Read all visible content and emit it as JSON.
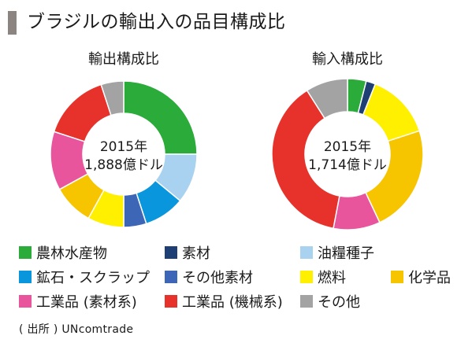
{
  "page": {
    "title": "ブラジルの輸出入の品目構成比",
    "source": "( 出所 ) UNcomtrade"
  },
  "categories": [
    {
      "key": "agri",
      "label": "農林水産物",
      "color": "#2aab3a"
    },
    {
      "key": "raw",
      "label": "素材",
      "color": "#1d3f73"
    },
    {
      "key": "oilseed",
      "label": "油糧種子",
      "color": "#a9d2f0"
    },
    {
      "key": "ore",
      "label": "鉱石・スクラップ",
      "color": "#0a96dc"
    },
    {
      "key": "otherraw",
      "label": "その他素材",
      "color": "#3e66b6"
    },
    {
      "key": "fuel",
      "label": "燃料",
      "color": "#fff000"
    },
    {
      "key": "chem",
      "label": "化学品",
      "color": "#f7c400"
    },
    {
      "key": "indmat",
      "label": "工業品 (素材系)",
      "color": "#e8559d"
    },
    {
      "key": "indmach",
      "label": "工業品 (機械系)",
      "color": "#e6322a"
    },
    {
      "key": "other",
      "label": "その他",
      "color": "#a3a3a3"
    }
  ],
  "chart_data": [
    {
      "type": "pie",
      "title": "輸出構成比",
      "center_label": [
        "2015年",
        "1,888億ドル"
      ],
      "slices": [
        {
          "category": "農林水産物",
          "value": 25
        },
        {
          "category": "油糧種子",
          "value": 11
        },
        {
          "category": "鉱石・スクラップ",
          "value": 9
        },
        {
          "category": "その他素材",
          "value": 5
        },
        {
          "category": "燃料",
          "value": 8
        },
        {
          "category": "化学品",
          "value": 9
        },
        {
          "category": "工業品 (素材系)",
          "value": 13
        },
        {
          "category": "工業品 (機械系)",
          "value": 15
        },
        {
          "category": "その他",
          "value": 5
        }
      ]
    },
    {
      "type": "pie",
      "title": "輸入構成比",
      "center_label": [
        "2015年",
        "1,714億ドル"
      ],
      "slices": [
        {
          "category": "農林水産物",
          "value": 4
        },
        {
          "category": "素材",
          "value": 2
        },
        {
          "category": "燃料",
          "value": 14
        },
        {
          "category": "化学品",
          "value": 23
        },
        {
          "category": "工業品 (素材系)",
          "value": 10
        },
        {
          "category": "工業品 (機械系)",
          "value": 38
        },
        {
          "category": "その他",
          "value": 9
        }
      ]
    }
  ]
}
